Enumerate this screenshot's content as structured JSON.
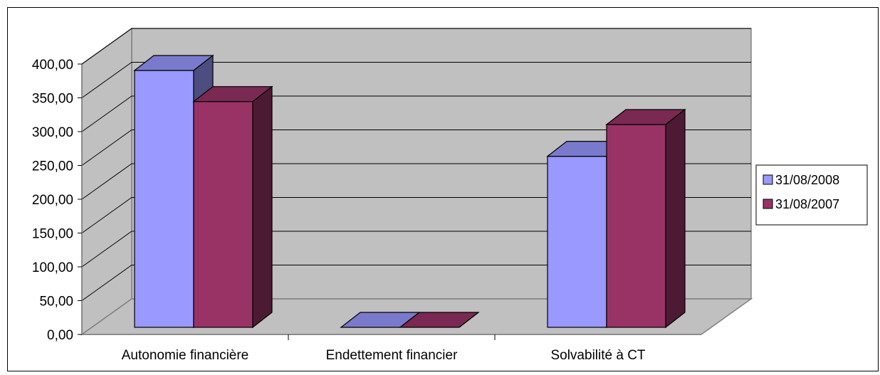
{
  "chart_data": {
    "type": "bar",
    "title": "",
    "xlabel": "",
    "ylabel": "",
    "categories": [
      "Autonomie financière",
      "Endettement financier",
      "Solvabilité à CT"
    ],
    "series": [
      {
        "name": "31/08/2008",
        "values": [
          380,
          0,
          253
        ],
        "color": "#9999ff"
      },
      {
        "name": "31/08/2007",
        "values": [
          334,
          0,
          300
        ],
        "color": "#993366"
      }
    ],
    "ylim": [
      0,
      400
    ],
    "yticks": [
      "0,00",
      "50,00",
      "100,00",
      "150,00",
      "200,00",
      "250,00",
      "300,00",
      "350,00",
      "400,00"
    ],
    "ytick_step": 50,
    "grid": true,
    "three_d": true,
    "legend_position": "right",
    "wall_color": "#c0c0c0",
    "floor_color": "#c0c0c0"
  }
}
